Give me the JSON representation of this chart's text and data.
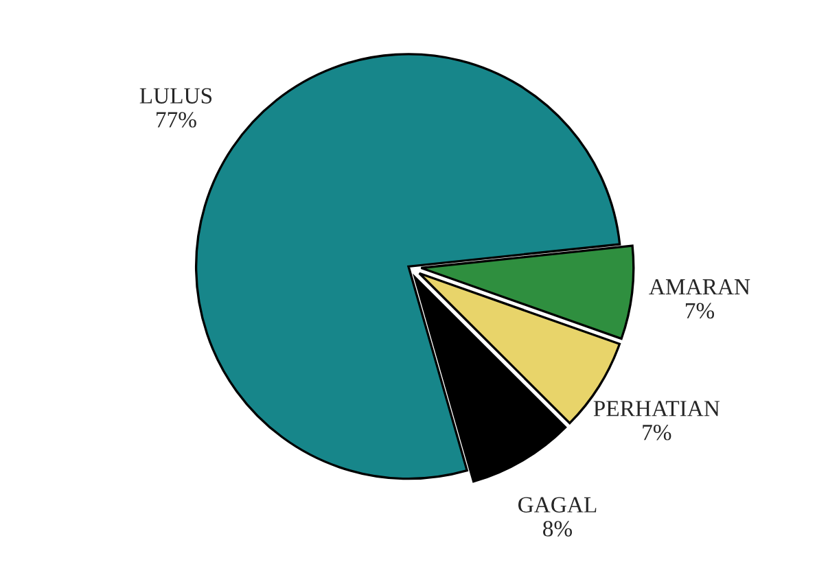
{
  "chart_data": {
    "type": "pie",
    "categories": [
      "LULUS",
      "AMARAN",
      "PERHATIAN",
      "GAGAL"
    ],
    "values": [
      77,
      7,
      7,
      8
    ],
    "value_labels": [
      "77%",
      "7%",
      "7%",
      "8%"
    ],
    "colors": [
      "#17868a",
      "#2f8f3f",
      "#e8d46a",
      "#000000"
    ]
  }
}
